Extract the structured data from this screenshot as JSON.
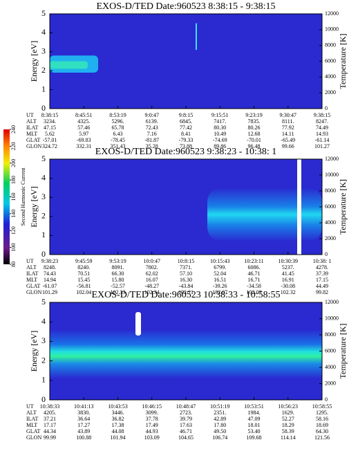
{
  "colorbar": {
    "label": "Second Harmonic Current",
    "ylim": [
      80,
      240
    ],
    "yticks": [
      80,
      100,
      120,
      140,
      160,
      180,
      200,
      220,
      240
    ]
  },
  "chart_data": [
    {
      "type": "heatmap",
      "title": "EXOS-D/TED   Date:960523   8:38:15 - 9:38:15",
      "ylabel": "Energy [eV]",
      "y2label": "Temperature [K]",
      "ylim": [
        0,
        5
      ],
      "yticks": [
        0,
        1,
        2,
        3,
        4,
        5
      ],
      "y2lim": [
        0,
        12000
      ],
      "y2ticks": [
        0,
        2000,
        4000,
        6000,
        8000,
        10000,
        12000
      ],
      "ephemeris": [
        {
          "label": "UT",
          "values": [
            "8:38:15",
            "8:45:51",
            "8:53:19",
            "9:0:47",
            "9:8:15",
            "9:15:51",
            "9:23:19",
            "9:30:47",
            "9:38:15"
          ]
        },
        {
          "label": "ALT",
          "values": [
            "3234.",
            "4325.",
            "5296.",
            "6139.",
            "6845.",
            "7417.",
            "7835.",
            "8111.",
            "8247."
          ]
        },
        {
          "label": "ILAT",
          "values": [
            "47.15",
            "57.46",
            "65.78",
            "72.43",
            "77.42",
            "80.30",
            "80.26",
            "77.92",
            "74.49"
          ]
        },
        {
          "label": "MLT",
          "values": [
            "5.62",
            "5.97",
            "6.43",
            "7.16",
            "8.41",
            "10.49",
            "12.68",
            "14.11",
            "14.93"
          ]
        },
        {
          "label": "GLAT",
          "values": [
            "-57.01",
            "-69.83",
            "-78.45",
            "-81.87",
            "-79.33",
            "-74.69",
            "-70.01",
            "-65.49",
            "-61.14"
          ]
        },
        {
          "label": "GLON",
          "values": [
            "324.72",
            "332.31",
            "351.43",
            "35.28",
            "73.88",
            "89.86",
            "96.48",
            "99.66",
            "101.27"
          ]
        }
      ]
    },
    {
      "type": "heatmap",
      "title": "EXOS-D/TED   Date:960523   9:38:23 - 10:38: 1",
      "ylabel": "Energy [eV]",
      "y2label": "Temperature [K]",
      "ylim": [
        0,
        5
      ],
      "yticks": [
        0,
        1,
        2,
        3,
        4,
        5
      ],
      "y2lim": [
        0,
        12000
      ],
      "y2ticks": [
        0,
        2000,
        4000,
        6000,
        8000,
        10000,
        12000
      ],
      "ephemeris": [
        {
          "label": "UT",
          "values": [
            "9:38:23",
            "9:45:59",
            "9:53:19",
            "10:0:47",
            "10:8:15",
            "10:15:43",
            "10:23:11",
            "10:30:39",
            "10:38: 1"
          ]
        },
        {
          "label": "ALT",
          "values": [
            "8248.",
            "8240.",
            "8091.",
            "7802.",
            "7371.",
            "6799.",
            "6086.",
            "5237.",
            "4278."
          ]
        },
        {
          "label": "ILAT",
          "values": [
            "74.43",
            "70.51",
            "66.30",
            "62.02",
            "57.10",
            "52.04",
            "46.71",
            "41.45",
            "37.39"
          ]
        },
        {
          "label": "MLT",
          "values": [
            "14.94",
            "15.45",
            "15.80",
            "16.07",
            "16.30",
            "16.51",
            "16.71",
            "16.91",
            "17.15"
          ]
        },
        {
          "label": "GLAT",
          "values": [
            "-61.07",
            "-56.81",
            "-52.57",
            "-48.27",
            "-43.84",
            "-39.26",
            "-34.58",
            "-30.08",
            "44.49"
          ]
        },
        {
          "label": "GLON",
          "values": [
            "101.29",
            "102.04",
            "102.33",
            "102.34",
            "102.21",
            "102.07",
            "102.03",
            "102.32",
            "99.82"
          ]
        }
      ]
    },
    {
      "type": "heatmap",
      "title": "EXOS-D/TED   Date:960523   10:38:33 - 10:58:55",
      "ylabel": "Energy [eV]",
      "y2label": "Temperature [K]",
      "ylim": [
        0,
        5
      ],
      "yticks": [
        0,
        1,
        2,
        3,
        4,
        5
      ],
      "y2lim": [
        0,
        12000
      ],
      "y2ticks": [
        0,
        2000,
        4000,
        6000,
        8000,
        10000,
        12000
      ],
      "ephemeris": [
        {
          "label": "UT",
          "values": [
            "10:38:33",
            "10:41:13",
            "10:43:53",
            "10:46:15",
            "10:48:47",
            "10:51:19",
            "10:53:51",
            "10:56:23",
            "10:58:55"
          ]
        },
        {
          "label": "ALT",
          "values": [
            "4205.",
            "3830.",
            "3446.",
            "3099.",
            "2723.",
            "2351.",
            "1984.",
            "1629.",
            "1295."
          ]
        },
        {
          "label": "ILAT",
          "values": [
            "37.21",
            "36.64",
            "36.82",
            "37.78",
            "39.79",
            "42.89",
            "47.09",
            "52.27",
            "58.16"
          ]
        },
        {
          "label": "MLT",
          "values": [
            "17.17",
            "17.27",
            "17.38",
            "17.49",
            "17.63",
            "17.80",
            "18.01",
            "18.29",
            "18.69"
          ]
        },
        {
          "label": "GLAT",
          "values": [
            "44.34",
            "43.89",
            "44.08",
            "44.93",
            "46.71",
            "49.50",
            "53.40",
            "58.39",
            "64.30"
          ]
        },
        {
          "label": "GLON",
          "values": [
            "99.99",
            "100.88",
            "101.94",
            "103.09",
            "104.65",
            "106.74",
            "109.68",
            "114.14",
            "121.56"
          ]
        }
      ]
    }
  ]
}
